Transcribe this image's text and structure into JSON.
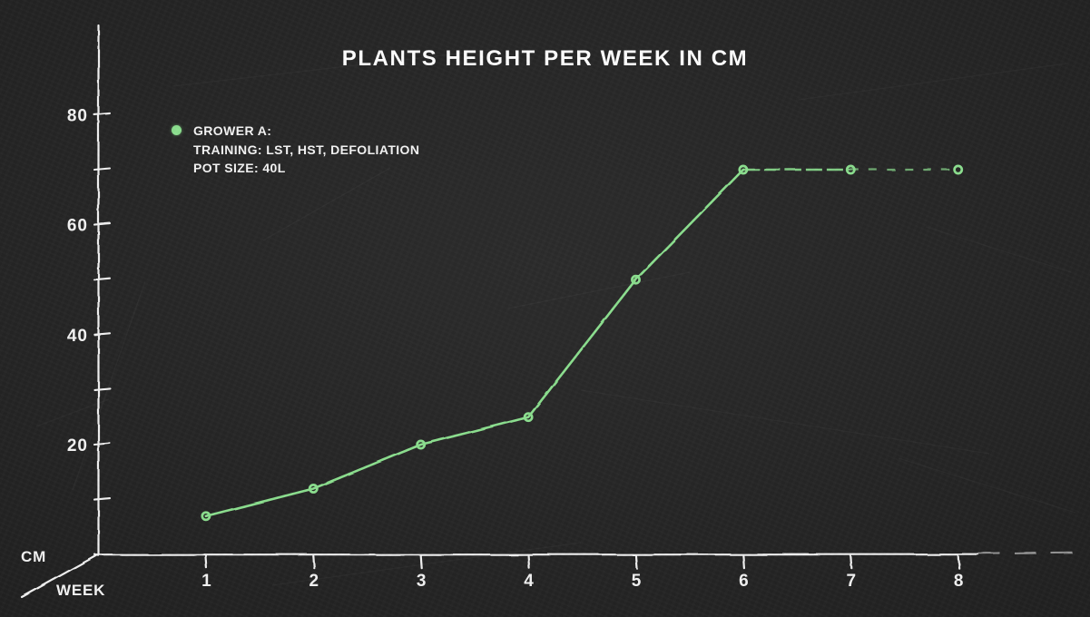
{
  "chart": {
    "title": "PLANTS HEIGHT PER WEEK IN CM",
    "xlabel": "WEEK",
    "ylabel": "CM"
  },
  "legend": {
    "line1": "GROWER A:",
    "line2": "TRAINING: LST, HST, DEFOLIATION",
    "line3": "POT SIZE: 40L",
    "marker_color": "#8ce08f"
  },
  "chart_data": {
    "type": "line",
    "title": "PLANTS HEIGHT PER WEEK IN CM",
    "xlabel": "WEEK",
    "ylabel": "CM",
    "x": [
      1,
      2,
      3,
      4,
      5,
      6,
      7,
      8
    ],
    "series": [
      {
        "name": "GROWER A: TRAINING: LST, HST, DEFOLIATION, POT SIZE: 40L",
        "values": [
          7,
          12,
          20,
          25,
          50,
          70,
          70,
          70
        ]
      }
    ],
    "xticks": [
      1,
      2,
      3,
      4,
      5,
      6,
      7,
      8
    ],
    "yticks_labeled": [
      20,
      40,
      60,
      80
    ],
    "yticks_minor": [
      10,
      30,
      50,
      70
    ],
    "xlim": [
      0,
      9
    ],
    "ylim": [
      0,
      88
    ],
    "grid": false,
    "legend_position": "upper-left",
    "line_color": "#8ce08f",
    "axis_color": "#f2f2f2",
    "background_color": "#242424",
    "dashed_segment_start_x": 6
  }
}
